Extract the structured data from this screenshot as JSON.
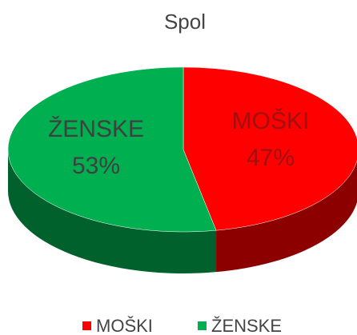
{
  "chart_data": {
    "type": "pie",
    "title": "Spol",
    "categories": [
      "MOŠKI",
      "ŽENSKE"
    ],
    "values": [
      47,
      53
    ],
    "value_labels": [
      "47%",
      "53%"
    ],
    "colors": [
      "#ff0000",
      "#00b050"
    ],
    "legend": "bottom"
  }
}
